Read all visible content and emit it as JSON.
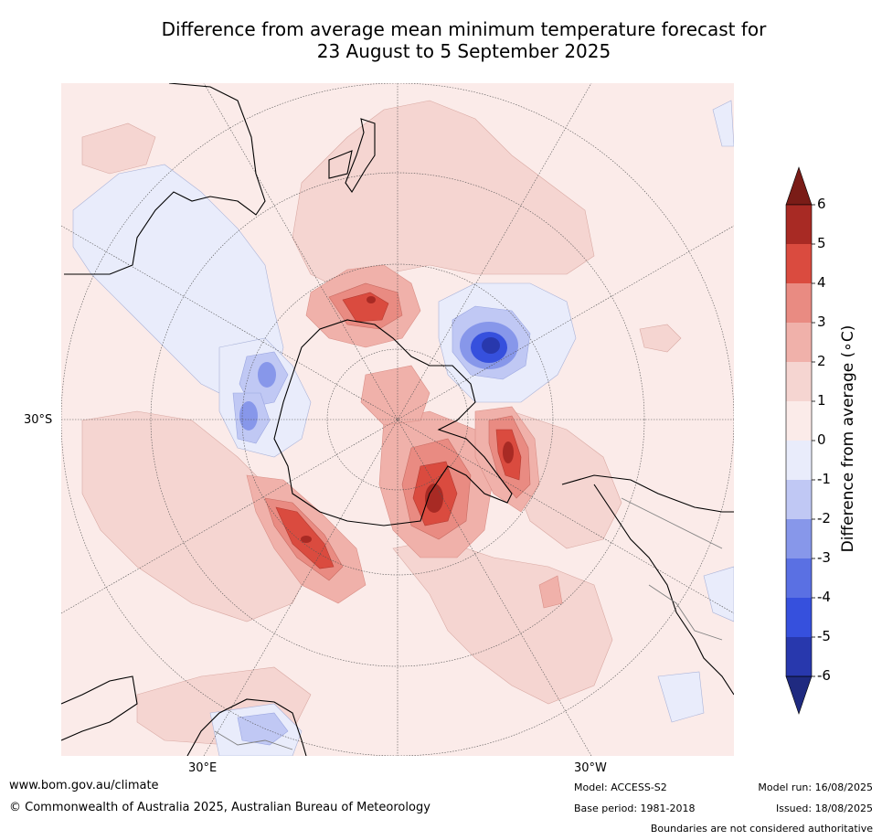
{
  "title": {
    "line1": "Difference from average mean minimum temperature forecast for",
    "line2": "23 August to 5 September 2025"
  },
  "map": {
    "projection": "south-polar-stereographic",
    "lat_labels": [
      "30°S"
    ],
    "lon_labels": [
      "30°E",
      "30°W"
    ],
    "background_color": "#fbebe9",
    "coastline_color": "#000000",
    "boundary_color": "#808080"
  },
  "colorbar": {
    "title": "Difference from average (∘C)",
    "ticks": [
      "6",
      "5",
      "4",
      "3",
      "2",
      "1",
      "0",
      "-1",
      "-2",
      "-3",
      "-4",
      "-5",
      "-6"
    ],
    "bins_top_to_bottom": [
      {
        "range": ">6",
        "color": "#7a1c17"
      },
      {
        "range": "5 to 6",
        "color": "#a82a24"
      },
      {
        "range": "4 to 5",
        "color": "#da4b3f"
      },
      {
        "range": "3 to 4",
        "color": "#e98b82"
      },
      {
        "range": "2 to 3",
        "color": "#f0b1aa"
      },
      {
        "range": "1 to 2",
        "color": "#f5d5d1"
      },
      {
        "range": "0 to 1",
        "color": "#fbebe9"
      },
      {
        "range": "-1 to 0",
        "color": "#e9ecfb"
      },
      {
        "range": "-2 to -1",
        "color": "#c0c8f4"
      },
      {
        "range": "-3 to -2",
        "color": "#8797ea"
      },
      {
        "range": "-4 to -3",
        "color": "#5a70e3"
      },
      {
        "range": "-5 to -4",
        "color": "#3650dd"
      },
      {
        "range": "-6 to -5",
        "color": "#2838ad"
      },
      {
        "range": "<-6",
        "color": "#1f2a80"
      }
    ]
  },
  "footer": {
    "url": "www.bom.gov.au/climate",
    "copyright": "© Commonwealth of Australia 2025, Australian Bureau of Meteorology",
    "model": "Model: ACCESS-S2",
    "base_period": "Base period: 1981-2018",
    "model_run": "Model run: 16/08/2025",
    "issued": "Issued: 18/08/2025",
    "disclaimer": "Boundaries are not considered authoritative"
  }
}
